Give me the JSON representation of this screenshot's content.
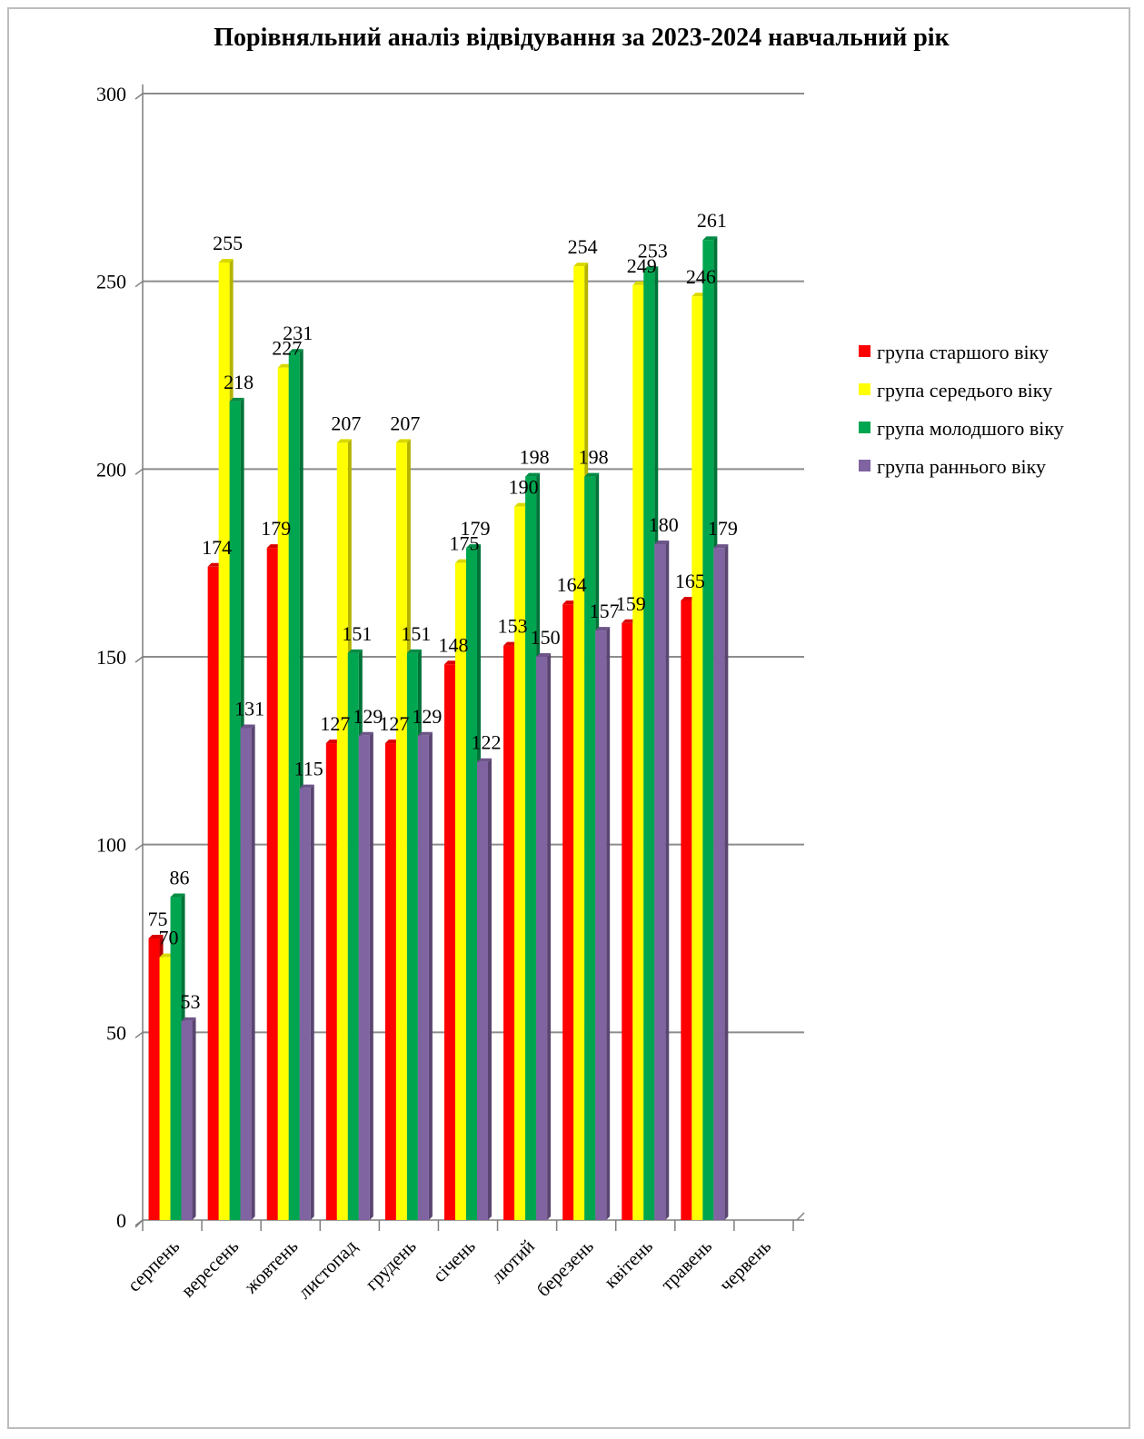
{
  "chart_data": {
    "type": "bar",
    "title": "Порівняльний аналіз відвідування за 2023-2024 навчальний рік",
    "categories": [
      "серпень",
      "вересень",
      "жовтень",
      "листопад",
      "грудень",
      "січень",
      "лютий",
      "березень",
      "квітень",
      "травень",
      "червень"
    ],
    "series": [
      {
        "name": "група старшого віку",
        "color": "#ff0000",
        "values": [
          75,
          174,
          179,
          127,
          127,
          148,
          153,
          164,
          159,
          165,
          null
        ]
      },
      {
        "name": "група середього віку",
        "color": "#ffff00",
        "values": [
          70,
          255,
          227,
          207,
          207,
          175,
          190,
          254,
          249,
          246,
          null
        ]
      },
      {
        "name": "група молодшого віку",
        "color": "#00a550",
        "values": [
          86,
          218,
          231,
          151,
          151,
          179,
          198,
          198,
          253,
          261,
          null
        ]
      },
      {
        "name": "група раннього віку",
        "color": "#8064a2",
        "values": [
          53,
          131,
          115,
          129,
          129,
          122,
          150,
          157,
          180,
          179,
          null
        ]
      }
    ],
    "yticks": [
      "0",
      "50",
      "100",
      "150",
      "200",
      "250",
      "300"
    ],
    "ylim": [
      0,
      300
    ],
    "grid": true,
    "legend": "right",
    "data_labels": true
  }
}
